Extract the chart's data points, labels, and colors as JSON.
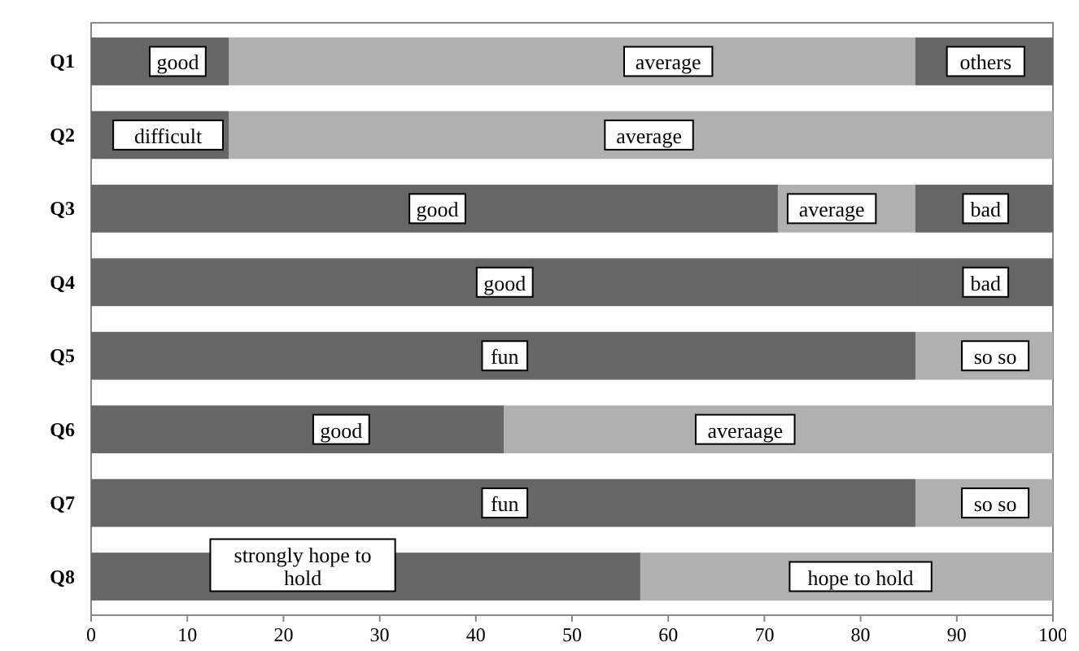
{
  "chart_data": {
    "type": "bar",
    "orientation": "horizontal",
    "stacked": true,
    "categories": [
      "Q1",
      "Q2",
      "Q3",
      "Q4",
      "Q5",
      "Q6",
      "Q7",
      "Q8"
    ],
    "series": [
      {
        "colors": [
          "#666666",
          "#666666",
          "#666666",
          "#666666",
          "#666666",
          "#666666",
          "#666666",
          "#666666"
        ],
        "values": [
          14.3,
          14.3,
          71.4,
          85.7,
          85.7,
          42.9,
          85.7,
          57.1
        ]
      },
      {
        "colors": [
          "#b0b0b0",
          "#b0b0b0",
          "#b0b0b0",
          "#666666",
          "#b0b0b0",
          "#b0b0b0",
          "#b0b0b0",
          "#b0b0b0"
        ],
        "values": [
          71.4,
          85.7,
          14.3,
          14.3,
          14.3,
          57.1,
          14.3,
          42.9
        ]
      },
      {
        "colors": [
          "#666666",
          null,
          "#666666",
          null,
          null,
          null,
          null,
          null
        ],
        "values": [
          14.3,
          null,
          14.3,
          null,
          null,
          null,
          null,
          null
        ]
      }
    ],
    "xlim": [
      0,
      100
    ],
    "xticks": [
      0,
      10,
      20,
      30,
      40,
      50,
      60,
      70,
      80,
      90,
      100
    ],
    "grid": false,
    "annotations": [
      {
        "text": "good",
        "x": 9,
        "y": "Q1"
      },
      {
        "text": "average",
        "x": 60,
        "y": "Q1"
      },
      {
        "text": "others",
        "x": 93,
        "y": "Q1"
      },
      {
        "text": "difficult",
        "x": 8,
        "y": "Q2"
      },
      {
        "text": "average",
        "x": 58,
        "y": "Q2"
      },
      {
        "text": "good",
        "x": 36,
        "y": "Q3"
      },
      {
        "text": "average",
        "x": 77,
        "y": "Q3"
      },
      {
        "text": "bad",
        "x": 93,
        "y": "Q3"
      },
      {
        "text": "good",
        "x": 43,
        "y": "Q4"
      },
      {
        "text": "bad",
        "x": 93,
        "y": "Q4"
      },
      {
        "text": "fun",
        "x": 43,
        "y": "Q5"
      },
      {
        "text": "so so",
        "x": 94,
        "y": "Q5"
      },
      {
        "text": "good",
        "x": 26,
        "y": "Q6"
      },
      {
        "text": "averaage",
        "x": 68,
        "y": "Q6"
      },
      {
        "text": "fun",
        "x": 43,
        "y": "Q7"
      },
      {
        "text": "so so",
        "x": 94,
        "y": "Q7"
      },
      {
        "text": "strongly hope to hold",
        "x": 22,
        "y": "Q8"
      },
      {
        "text": "hope to hold",
        "x": 80,
        "y": "Q8"
      }
    ]
  }
}
